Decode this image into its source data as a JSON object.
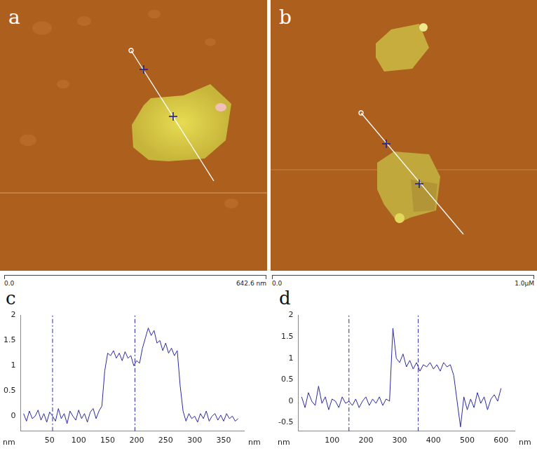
{
  "images": [
    {
      "panel": "a",
      "scale_start": "0.0",
      "scale_end": "642.6 nm"
    },
    {
      "panel": "b",
      "scale_start": "0.0",
      "scale_end": "1.0μM"
    }
  ],
  "chart_data": [
    {
      "type": "line",
      "panel": "c",
      "xlabel": "nm",
      "ylabel": "nm",
      "color": "#2a2aa0",
      "grid": false,
      "xlim": [
        0,
        385
      ],
      "xticks": [
        50,
        100,
        150,
        200,
        250,
        300,
        350
      ],
      "ylim": [
        -0.3,
        2
      ],
      "yticks": [
        0,
        0.5,
        1,
        1.5,
        2
      ],
      "cursor_x": [
        55,
        197
      ],
      "x": [
        5,
        10,
        15,
        20,
        25,
        30,
        35,
        40,
        45,
        50,
        55,
        60,
        65,
        70,
        75,
        80,
        85,
        90,
        95,
        100,
        105,
        110,
        115,
        120,
        125,
        130,
        135,
        140,
        145,
        150,
        155,
        160,
        165,
        170,
        175,
        180,
        185,
        190,
        195,
        200,
        205,
        210,
        215,
        220,
        225,
        230,
        235,
        240,
        245,
        250,
        255,
        260,
        265,
        270,
        275,
        280,
        285,
        290,
        295,
        300,
        305,
        310,
        315,
        320,
        325,
        330,
        335,
        340,
        345,
        350,
        355,
        360,
        365,
        370,
        375
      ],
      "values": [
        0.05,
        -0.1,
        0.1,
        -0.05,
        0.0,
        0.12,
        -0.08,
        0.05,
        -0.12,
        0.08,
        0.0,
        -0.1,
        0.15,
        -0.05,
        0.05,
        -0.15,
        0.1,
        0.0,
        -0.08,
        0.12,
        -0.05,
        0.05,
        -0.12,
        0.08,
        0.15,
        -0.05,
        0.1,
        0.2,
        0.9,
        1.25,
        1.2,
        1.3,
        1.15,
        1.25,
        1.1,
        1.28,
        1.15,
        1.2,
        1.0,
        1.1,
        1.05,
        1.35,
        1.55,
        1.75,
        1.6,
        1.7,
        1.45,
        1.5,
        1.3,
        1.45,
        1.25,
        1.35,
        1.2,
        1.3,
        0.6,
        0.1,
        -0.1,
        0.05,
        -0.05,
        0.0,
        -0.12,
        0.05,
        -0.05,
        0.1,
        -0.1,
        0.0,
        0.05,
        -0.08,
        0.02,
        -0.1,
        0.05,
        -0.05,
        0.0,
        -0.1,
        -0.05
      ]
    },
    {
      "type": "line",
      "panel": "d",
      "xlabel": "nm",
      "ylabel": "nm",
      "color": "#2a2aa0",
      "grid": false,
      "xlim": [
        0,
        640
      ],
      "xticks": [
        100,
        200,
        300,
        400,
        500,
        600
      ],
      "ylim": [
        -0.7,
        2
      ],
      "yticks": [
        -0.5,
        0,
        0.5,
        1,
        1.5,
        2
      ],
      "cursor_x": [
        150,
        355
      ],
      "x": [
        10,
        20,
        30,
        40,
        50,
        60,
        70,
        80,
        90,
        100,
        110,
        120,
        130,
        140,
        150,
        160,
        170,
        180,
        190,
        200,
        210,
        220,
        230,
        240,
        250,
        260,
        270,
        280,
        290,
        300,
        310,
        320,
        330,
        340,
        350,
        360,
        370,
        380,
        390,
        400,
        410,
        420,
        430,
        440,
        450,
        460,
        470,
        480,
        490,
        500,
        510,
        520,
        530,
        540,
        550,
        560,
        570,
        580,
        590,
        600
      ],
      "values": [
        0.1,
        -0.15,
        0.2,
        0.0,
        -0.1,
        0.35,
        -0.05,
        0.1,
        -0.2,
        0.05,
        0.0,
        -0.15,
        0.1,
        -0.05,
        0.0,
        -0.1,
        0.05,
        -0.15,
        0.0,
        0.1,
        -0.1,
        0.05,
        -0.05,
        0.1,
        -0.1,
        0.05,
        0.0,
        1.7,
        1.0,
        0.9,
        1.1,
        0.8,
        0.95,
        0.75,
        0.9,
        0.7,
        0.85,
        0.8,
        0.9,
        0.75,
        0.85,
        0.7,
        0.9,
        0.8,
        0.85,
        0.6,
        0.0,
        -0.6,
        0.1,
        -0.2,
        0.05,
        -0.15,
        0.2,
        -0.05,
        0.1,
        -0.2,
        0.05,
        0.15,
        0.0,
        0.3
      ]
    }
  ]
}
